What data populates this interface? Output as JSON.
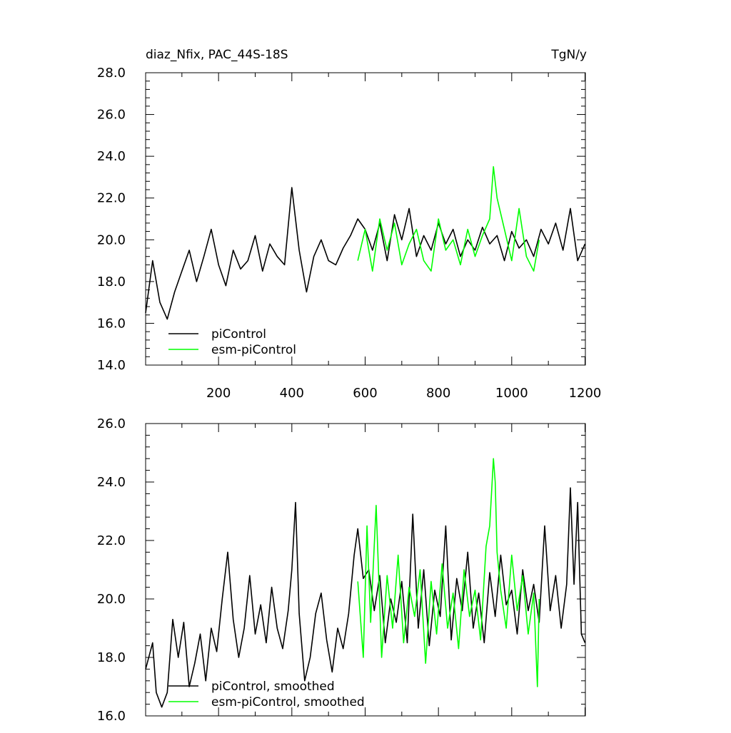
{
  "chart_data": [
    {
      "type": "line",
      "title": "diaz_Nfix, PAC_44S-18S",
      "units": "TgN/y",
      "xlim": [
        1,
        1201
      ],
      "ylim": [
        14,
        28
      ],
      "yticks": [
        14,
        16,
        18,
        20,
        22,
        24,
        26,
        28
      ],
      "ytick_labels": [
        "14.0",
        "16.0",
        "18.0",
        "20.0",
        "22.0",
        "24.0",
        "26.0",
        "28.0"
      ],
      "xticks": [
        200,
        400,
        600,
        800,
        1000,
        1200
      ],
      "xtick_labels": [
        "200",
        "400",
        "600",
        "800",
        "1000",
        "1200"
      ],
      "legend": {
        "position": "bottom-left",
        "entries": [
          "piControl",
          "esm-piControl"
        ]
      },
      "series": [
        {
          "name": "piControl",
          "color": "#000000",
          "x": [
            1,
            20,
            40,
            60,
            80,
            100,
            120,
            140,
            160,
            180,
            200,
            220,
            240,
            260,
            280,
            300,
            320,
            340,
            360,
            380,
            400,
            420,
            440,
            460,
            480,
            500,
            520,
            540,
            560,
            580,
            600,
            620,
            640,
            660,
            680,
            700,
            720,
            740,
            760,
            780,
            800,
            820,
            840,
            860,
            880,
            900,
            920,
            940,
            960,
            980,
            1000,
            1020,
            1040,
            1060,
            1080,
            1100,
            1120,
            1140,
            1160,
            1180,
            1200
          ],
          "y": [
            16.5,
            19.0,
            17.0,
            16.2,
            17.5,
            18.5,
            19.5,
            18.0,
            19.2,
            20.5,
            18.8,
            17.8,
            19.5,
            18.6,
            19.0,
            20.2,
            18.5,
            19.8,
            19.2,
            18.8,
            22.5,
            19.5,
            17.5,
            19.2,
            20.0,
            19.0,
            18.8,
            19.6,
            20.2,
            21.0,
            20.5,
            19.5,
            20.8,
            19.0,
            21.2,
            20.0,
            21.5,
            19.2,
            20.2,
            19.5,
            20.8,
            19.8,
            20.5,
            19.2,
            20.0,
            19.5,
            20.6,
            19.8,
            20.2,
            19.0,
            20.4,
            19.6,
            20.0,
            19.2,
            20.5,
            19.8,
            20.8,
            19.5,
            21.5,
            19.0,
            19.8
          ]
        },
        {
          "name": "esm-piControl",
          "color": "#00ff00",
          "x": [
            580,
            600,
            620,
            640,
            660,
            680,
            700,
            720,
            740,
            760,
            780,
            800,
            820,
            840,
            860,
            880,
            900,
            920,
            940,
            950,
            960,
            980,
            1000,
            1020,
            1040,
            1060,
            1075
          ],
          "y": [
            19.0,
            20.5,
            18.5,
            21.0,
            19.5,
            20.8,
            18.8,
            19.8,
            20.5,
            19.0,
            18.5,
            21.0,
            19.5,
            20.0,
            18.8,
            20.5,
            19.2,
            20.2,
            21.0,
            23.5,
            22.0,
            20.5,
            19.0,
            21.5,
            19.2,
            18.5,
            20.0
          ]
        }
      ]
    },
    {
      "type": "line",
      "xlim": [
        1,
        1201
      ],
      "ylim": [
        16,
        26
      ],
      "yticks": [
        16,
        18,
        20,
        22,
        24,
        26
      ],
      "ytick_labels": [
        "16.0",
        "18.0",
        "20.0",
        "22.0",
        "24.0",
        "26.0"
      ],
      "legend": {
        "position": "bottom-left",
        "entries": [
          "piControl, smoothed",
          "esm-piControl, smoothed"
        ]
      },
      "series": [
        {
          "name": "piControl, smoothed",
          "color": "#000000",
          "x": [
            1,
            20,
            30,
            45,
            60,
            75,
            90,
            105,
            120,
            135,
            150,
            165,
            180,
            195,
            210,
            225,
            240,
            255,
            270,
            285,
            300,
            315,
            330,
            345,
            360,
            375,
            390,
            400,
            410,
            420,
            435,
            450,
            465,
            480,
            495,
            510,
            525,
            540,
            555,
            570,
            580,
            595,
            610,
            625,
            640,
            655,
            670,
            685,
            700,
            715,
            730,
            745,
            760,
            775,
            790,
            805,
            820,
            835,
            850,
            865,
            880,
            895,
            910,
            925,
            940,
            955,
            970,
            985,
            1000,
            1015,
            1030,
            1045,
            1060,
            1075,
            1090,
            1105,
            1120,
            1135,
            1150,
            1160,
            1170,
            1180,
            1190,
            1200
          ],
          "y": [
            17.6,
            18.5,
            16.8,
            16.3,
            16.8,
            19.3,
            18.0,
            19.2,
            17.0,
            17.8,
            18.8,
            17.2,
            19.0,
            18.2,
            20.0,
            21.6,
            19.3,
            18.0,
            19.0,
            20.8,
            18.8,
            19.8,
            18.5,
            20.4,
            19.0,
            18.3,
            19.6,
            21.0,
            23.3,
            19.5,
            17.2,
            18.0,
            19.5,
            20.2,
            18.6,
            17.5,
            19.0,
            18.3,
            19.5,
            21.5,
            22.4,
            20.7,
            21.0,
            19.6,
            20.8,
            18.5,
            20.0,
            19.2,
            20.6,
            18.5,
            22.9,
            19.0,
            21.0,
            18.4,
            20.3,
            19.4,
            22.5,
            18.6,
            20.7,
            19.6,
            21.6,
            19.0,
            20.2,
            18.5,
            20.9,
            19.4,
            21.5,
            19.8,
            20.3,
            18.8,
            21.0,
            19.6,
            20.5,
            19.2,
            22.5,
            19.6,
            20.8,
            19.0,
            20.5,
            23.8,
            20.5,
            23.3,
            18.8,
            18.5
          ]
        },
        {
          "name": "esm-piControl, smoothed",
          "color": "#00ff00",
          "x": [
            580,
            595,
            605,
            615,
            630,
            645,
            660,
            675,
            690,
            705,
            720,
            735,
            750,
            765,
            780,
            795,
            810,
            825,
            840,
            855,
            870,
            885,
            900,
            915,
            930,
            940,
            950,
            955,
            960,
            970,
            985,
            1000,
            1015,
            1030,
            1045,
            1060,
            1070,
            1075
          ],
          "y": [
            20.6,
            18.0,
            22.5,
            19.2,
            23.2,
            18.0,
            20.8,
            19.0,
            21.5,
            18.5,
            20.4,
            19.4,
            21.0,
            17.8,
            20.6,
            18.8,
            21.2,
            19.0,
            20.2,
            18.3,
            21.0,
            19.4,
            20.3,
            18.6,
            21.8,
            22.5,
            24.8,
            24.0,
            21.6,
            20.3,
            19.0,
            21.5,
            19.6,
            20.8,
            18.8,
            20.2,
            17.0,
            20.0
          ]
        }
      ]
    }
  ]
}
